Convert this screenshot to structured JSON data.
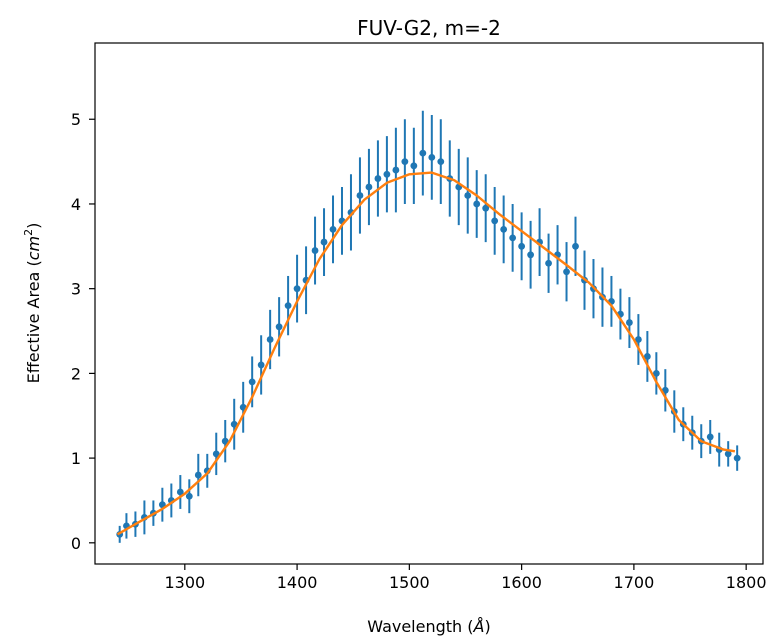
{
  "chart_data": {
    "type": "scatter",
    "title": "FUV-G2, m=-2",
    "xlabel_main": "Wavelength (",
    "xlabel_unit": "Å",
    "xlabel_close": ")",
    "ylabel_main": "Effective Area (",
    "ylabel_unit": "cm",
    "ylabel_power": "2",
    "ylabel_close": ")",
    "xlim": [
      1220,
      1815
    ],
    "ylim": [
      -0.25,
      5.9
    ],
    "xticks": [
      1300,
      1400,
      1500,
      1600,
      1700,
      1800
    ],
    "yticks": [
      0,
      1,
      2,
      3,
      4,
      5
    ],
    "grid": false,
    "colors": {
      "points": "#1f77b4",
      "fit": "#ff7f0e"
    },
    "fit_curve": {
      "x": [
        1240,
        1260,
        1280,
        1300,
        1320,
        1340,
        1360,
        1380,
        1400,
        1420,
        1440,
        1460,
        1480,
        1500,
        1520,
        1540,
        1560,
        1580,
        1600,
        1620,
        1640,
        1660,
        1680,
        1700,
        1720,
        1740,
        1760,
        1780,
        1790
      ],
      "y": [
        0.1,
        0.25,
        0.4,
        0.58,
        0.82,
        1.2,
        1.72,
        2.3,
        2.85,
        3.35,
        3.75,
        4.05,
        4.25,
        4.35,
        4.37,
        4.28,
        4.1,
        3.88,
        3.68,
        3.48,
        3.28,
        3.07,
        2.8,
        2.4,
        1.9,
        1.45,
        1.2,
        1.1,
        1.08
      ]
    },
    "points": {
      "x": [
        1242,
        1248,
        1256,
        1264,
        1272,
        1280,
        1288,
        1296,
        1304,
        1312,
        1320,
        1328,
        1336,
        1344,
        1352,
        1360,
        1368,
        1376,
        1384,
        1392,
        1400,
        1408,
        1416,
        1424,
        1432,
        1440,
        1448,
        1456,
        1464,
        1472,
        1480,
        1488,
        1496,
        1504,
        1512,
        1520,
        1528,
        1536,
        1544,
        1552,
        1560,
        1568,
        1576,
        1584,
        1592,
        1600,
        1608,
        1616,
        1624,
        1632,
        1640,
        1648,
        1656,
        1664,
        1672,
        1680,
        1688,
        1696,
        1704,
        1712,
        1720,
        1728,
        1736,
        1744,
        1752,
        1760,
        1768,
        1776,
        1784,
        1792
      ],
      "y": [
        0.1,
        0.2,
        0.22,
        0.3,
        0.35,
        0.45,
        0.5,
        0.6,
        0.55,
        0.8,
        0.85,
        1.05,
        1.2,
        1.4,
        1.6,
        1.9,
        2.1,
        2.4,
        2.55,
        2.8,
        3.0,
        3.1,
        3.45,
        3.55,
        3.7,
        3.8,
        3.9,
        4.1,
        4.2,
        4.3,
        4.35,
        4.4,
        4.5,
        4.45,
        4.6,
        4.55,
        4.5,
        4.3,
        4.2,
        4.1,
        4.0,
        3.95,
        3.8,
        3.7,
        3.6,
        3.5,
        3.4,
        3.55,
        3.3,
        3.4,
        3.2,
        3.5,
        3.1,
        3.0,
        2.9,
        2.85,
        2.7,
        2.6,
        2.4,
        2.2,
        2.0,
        1.8,
        1.55,
        1.4,
        1.3,
        1.2,
        1.25,
        1.1,
        1.05,
        1.0
      ],
      "err": [
        0.1,
        0.15,
        0.15,
        0.2,
        0.15,
        0.2,
        0.2,
        0.2,
        0.2,
        0.25,
        0.2,
        0.25,
        0.25,
        0.3,
        0.3,
        0.3,
        0.35,
        0.35,
        0.35,
        0.35,
        0.4,
        0.4,
        0.4,
        0.4,
        0.4,
        0.4,
        0.45,
        0.45,
        0.45,
        0.45,
        0.45,
        0.5,
        0.5,
        0.45,
        0.5,
        0.5,
        0.5,
        0.45,
        0.45,
        0.45,
        0.4,
        0.4,
        0.4,
        0.4,
        0.4,
        0.4,
        0.4,
        0.4,
        0.35,
        0.35,
        0.35,
        0.35,
        0.35,
        0.35,
        0.35,
        0.3,
        0.3,
        0.3,
        0.3,
        0.3,
        0.25,
        0.25,
        0.25,
        0.2,
        0.2,
        0.2,
        0.2,
        0.2,
        0.15,
        0.15
      ]
    }
  }
}
